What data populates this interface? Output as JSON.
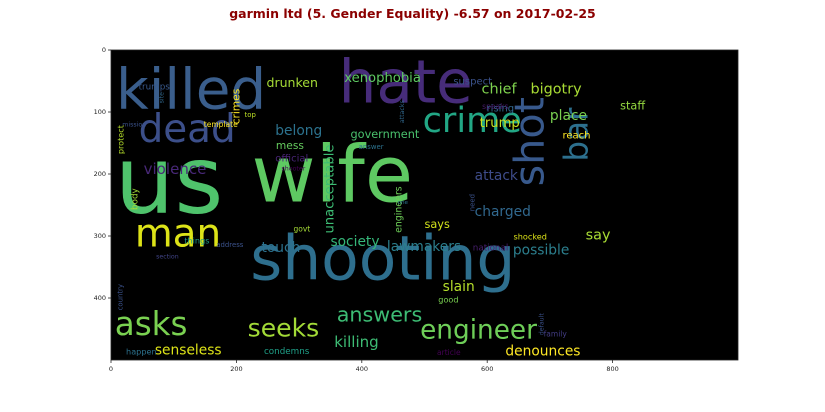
{
  "chart_data": {
    "type": "wordcloud",
    "title": "garmin ltd (5. Gender Equality) -6.57 on 2017-02-25",
    "xlim": [
      0,
      1000
    ],
    "ylim": [
      500,
      0
    ],
    "xticks": [
      0,
      200,
      400,
      600,
      800
    ],
    "yticks": [
      0,
      100,
      200,
      300,
      400
    ],
    "background": "#000000",
    "title_color": "#8b0000",
    "words": [
      {
        "text": "us",
        "x": 6,
        "y": 262,
        "size": 150,
        "color": "#4fc36c",
        "rot": 0
      },
      {
        "text": "wife",
        "x": 224,
        "y": 244,
        "size": 125,
        "color": "#5ec962",
        "rot": 0
      },
      {
        "text": "shooting",
        "x": 222,
        "y": 370,
        "size": 98,
        "color": "#2e6f8e",
        "rot": 0
      },
      {
        "text": "hate",
        "x": 363,
        "y": 85,
        "size": 95,
        "color": "#472c7a",
        "rot": 0
      },
      {
        "text": "killed",
        "x": 8,
        "y": 94,
        "size": 90,
        "color": "#3a5e8c",
        "rot": 0
      },
      {
        "text": "dead",
        "x": 44,
        "y": 148,
        "size": 62,
        "color": "#3c4f8a",
        "rot": 0
      },
      {
        "text": "man",
        "x": 38,
        "y": 317,
        "size": 62,
        "color": "#dde318",
        "rot": 0
      },
      {
        "text": "crime",
        "x": 497,
        "y": 132,
        "size": 56,
        "color": "#22a785",
        "rot": 0
      },
      {
        "text": "shot",
        "x": 690,
        "y": 220,
        "size": 66,
        "color": "#38598c",
        "rot": -90
      },
      {
        "text": "bar",
        "x": 760,
        "y": 180,
        "size": 52,
        "color": "#2d708e",
        "rot": -90
      },
      {
        "text": "asks",
        "x": 6,
        "y": 460,
        "size": 52,
        "color": "#7ad151",
        "rot": 0
      },
      {
        "text": "seeks",
        "x": 218,
        "y": 462,
        "size": 40,
        "color": "#a2da37",
        "rot": 0
      },
      {
        "text": "engineer",
        "x": 493,
        "y": 465,
        "size": 42,
        "color": "#6ece58",
        "rot": 0
      },
      {
        "text": "answers",
        "x": 360,
        "y": 438,
        "size": 33,
        "color": "#3dbc74",
        "rot": 0
      },
      {
        "text": "xenophobia",
        "x": 372,
        "y": 52,
        "size": 21,
        "color": "#5ec962",
        "rot": 0
      },
      {
        "text": "drunken",
        "x": 248,
        "y": 60,
        "size": 20,
        "color": "#a5db36",
        "rot": 0
      },
      {
        "text": "suspect",
        "x": 546,
        "y": 56,
        "size": 16,
        "color": "#3b528b",
        "rot": 0
      },
      {
        "text": "chief",
        "x": 591,
        "y": 70,
        "size": 23,
        "color": "#7fd34e",
        "rot": 0
      },
      {
        "text": "bigotry",
        "x": 669,
        "y": 70,
        "size": 23,
        "color": "#a8db34",
        "rot": 0
      },
      {
        "text": "staff",
        "x": 812,
        "y": 96,
        "size": 18,
        "color": "#95d840",
        "rot": 0
      },
      {
        "text": "rising",
        "x": 599,
        "y": 99,
        "size": 16,
        "color": "#31688e",
        "rot": 0
      },
      {
        "text": "speaks",
        "x": 592,
        "y": 95,
        "size": 12,
        "color": "#481a6c",
        "rot": 0
      },
      {
        "text": "trump",
        "x": 588,
        "y": 124,
        "size": 21,
        "color": "#c8e020",
        "rot": 0
      },
      {
        "text": "place",
        "x": 700,
        "y": 113,
        "size": 22,
        "color": "#7ad151",
        "rot": 0
      },
      {
        "text": "belong",
        "x": 262,
        "y": 137,
        "size": 22,
        "color": "#2c728e",
        "rot": 0
      },
      {
        "text": "government",
        "x": 382,
        "y": 142,
        "size": 18,
        "color": "#4ac16d",
        "rot": 0
      },
      {
        "text": "reach",
        "x": 720,
        "y": 143,
        "size": 16,
        "color": "#fde725",
        "rot": 0
      },
      {
        "text": "mess",
        "x": 263,
        "y": 160,
        "size": 17,
        "color": "#65cb5e",
        "rot": 0
      },
      {
        "text": "answer",
        "x": 395,
        "y": 160,
        "size": 11,
        "color": "#2c728e",
        "rot": 0
      },
      {
        "text": "official",
        "x": 262,
        "y": 180,
        "size": 16,
        "color": "#482475",
        "rot": 0
      },
      {
        "text": "shooter",
        "x": 272,
        "y": 194,
        "size": 10,
        "color": "#440154",
        "rot": 0
      },
      {
        "text": "violence",
        "x": 52,
        "y": 200,
        "size": 24,
        "color": "#482878",
        "rot": 0
      },
      {
        "text": "attack",
        "x": 580,
        "y": 210,
        "size": 22,
        "color": "#3e4c8a",
        "rot": 0
      },
      {
        "text": "charged",
        "x": 580,
        "y": 268,
        "size": 22,
        "color": "#31688e",
        "rot": 0
      },
      {
        "text": "says",
        "x": 500,
        "y": 287,
        "size": 18,
        "color": "#d2e21b",
        "rot": 0
      },
      {
        "text": "say",
        "x": 757,
        "y": 306,
        "size": 23,
        "color": "#a8db34",
        "rot": 0
      },
      {
        "text": "shocked",
        "x": 642,
        "y": 306,
        "size": 13,
        "color": "#dde318",
        "rot": 0
      },
      {
        "text": "govt",
        "x": 291,
        "y": 293,
        "size": 12,
        "color": "#a5db36",
        "rot": 0
      },
      {
        "text": "address",
        "x": 168,
        "y": 318,
        "size": 11,
        "color": "#3b528b",
        "rot": 0
      },
      {
        "text": "touch",
        "x": 240,
        "y": 326,
        "size": 22,
        "color": "#2c728e",
        "rot": 0
      },
      {
        "text": "society",
        "x": 350,
        "y": 316,
        "size": 22,
        "color": "#35b779",
        "rot": 0
      },
      {
        "text": "lawmakers",
        "x": 440,
        "y": 324,
        "size": 22,
        "color": "#2c7f8e",
        "rot": 0
      },
      {
        "text": "national",
        "x": 577,
        "y": 323,
        "size": 14,
        "color": "#481f70",
        "rot": 0
      },
      {
        "text": "possible",
        "x": 641,
        "y": 330,
        "size": 22,
        "color": "#2c7f8e",
        "rot": 0
      },
      {
        "text": "things",
        "x": 117,
        "y": 312,
        "size": 13,
        "color": "#1f9e89",
        "rot": 0
      },
      {
        "text": "section",
        "x": 72,
        "y": 336,
        "size": 10,
        "color": "#414487",
        "rot": 0
      },
      {
        "text": "slain",
        "x": 529,
        "y": 389,
        "size": 22,
        "color": "#b5de2b",
        "rot": 0
      },
      {
        "text": "good",
        "x": 522,
        "y": 407,
        "size": 13,
        "color": "#7ad151",
        "rot": 0
      },
      {
        "text": "killing",
        "x": 356,
        "y": 479,
        "size": 24,
        "color": "#3dbc74",
        "rot": 0
      },
      {
        "text": "senseless",
        "x": 70,
        "y": 491,
        "size": 22,
        "color": "#dde318",
        "rot": 0
      },
      {
        "text": "condemns",
        "x": 244,
        "y": 490,
        "size": 14,
        "color": "#1fa088",
        "rot": 0
      },
      {
        "text": "denounces",
        "x": 629,
        "y": 493,
        "size": 22,
        "color": "#fde725",
        "rot": 0
      },
      {
        "text": "happen",
        "x": 24,
        "y": 491,
        "size": 13,
        "color": "#2c728e",
        "rot": 0
      },
      {
        "text": "article",
        "x": 520,
        "y": 492,
        "size": 12,
        "color": "#440154",
        "rot": 0
      },
      {
        "text": "family",
        "x": 690,
        "y": 462,
        "size": 12,
        "color": "#433d84",
        "rot": 0
      },
      {
        "text": "trumps",
        "x": 44,
        "y": 64,
        "size": 14,
        "color": "#38598c",
        "rot": 0
      },
      {
        "text": "site",
        "x": 84,
        "y": 86,
        "size": 10,
        "color": "#31688e",
        "rot": -90
      },
      {
        "text": "template",
        "x": 148,
        "y": 124,
        "size": 12,
        "color": "#fde725",
        "rot": 0
      },
      {
        "text": "mission",
        "x": 18,
        "y": 123,
        "size": 10,
        "color": "#3b528b",
        "rot": 0
      },
      {
        "text": "protect",
        "x": 20,
        "y": 168,
        "size": 13,
        "color": "#b5de2b",
        "rot": -90
      },
      {
        "text": "body",
        "x": 42,
        "y": 258,
        "size": 14,
        "color": "#a2da37",
        "rot": -90
      },
      {
        "text": "country",
        "x": 18,
        "y": 420,
        "size": 11,
        "color": "#3b528b",
        "rot": -90
      },
      {
        "text": "crimes",
        "x": 205,
        "y": 120,
        "size": 17,
        "color": "#fde725",
        "rot": -90
      },
      {
        "text": "top",
        "x": 213,
        "y": 108,
        "size": 11,
        "color": "#bddf26",
        "rot": 0
      },
      {
        "text": "unacceptable",
        "x": 355,
        "y": 296,
        "size": 21,
        "color": "#3dbc74",
        "rot": -90
      },
      {
        "text": "engineers",
        "x": 463,
        "y": 295,
        "size": 15,
        "color": "#6ece58",
        "rot": -90
      },
      {
        "text": "attacks",
        "x": 467,
        "y": 118,
        "size": 10,
        "color": "#31688e",
        "rot": -90
      },
      {
        "text": "one",
        "x": 457,
        "y": 248,
        "size": 9,
        "color": "#2c728e",
        "rot": 0
      },
      {
        "text": "need",
        "x": 580,
        "y": 260,
        "size": 11,
        "color": "#3b528b",
        "rot": -90
      },
      {
        "text": "default",
        "x": 690,
        "y": 460,
        "size": 10,
        "color": "#3b528b",
        "rot": -90
      }
    ]
  }
}
